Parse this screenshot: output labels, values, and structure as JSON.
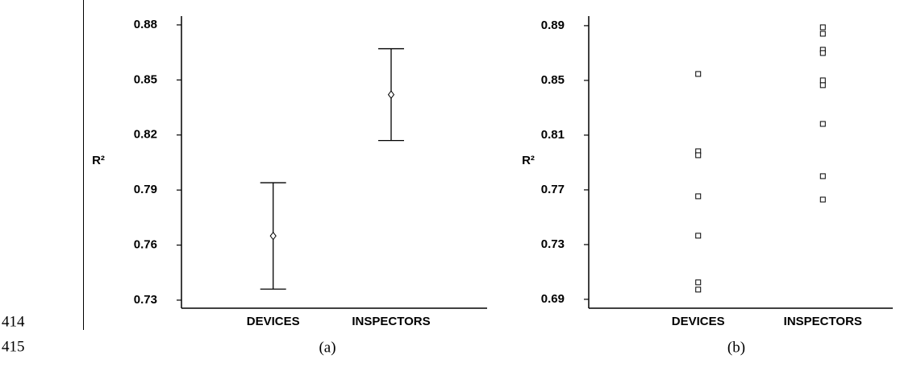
{
  "line_numbers": [
    "414",
    "415"
  ],
  "chart_data": [
    {
      "type": "errorbar",
      "caption": "(a)",
      "ylabel": "R²",
      "categories": [
        "DEVICES",
        "INSPECTORS"
      ],
      "values": [
        0.765,
        0.842
      ],
      "errors": [
        0.029,
        0.025
      ],
      "ylim": [
        0.7256,
        0.8848
      ],
      "yticks": [
        0.73,
        0.76,
        0.79,
        0.82,
        0.85,
        0.88
      ]
    },
    {
      "type": "strip",
      "caption": "(b)",
      "ylabel": "R²",
      "categories": [
        "DEVICES",
        "INSPECTORS"
      ],
      "values": [
        [
          0.8547,
          0.7982,
          0.7953,
          0.7653,
          0.7365,
          0.7024,
          0.6971
        ],
        [
          0.8888,
          0.8841,
          0.8724,
          0.87,
          0.85,
          0.8465,
          0.8182,
          0.78,
          0.7629
        ]
      ],
      "ylim": [
        0.6835,
        0.897
      ],
      "yticks": [
        0.69,
        0.73,
        0.77,
        0.81,
        0.85,
        0.89
      ]
    }
  ]
}
